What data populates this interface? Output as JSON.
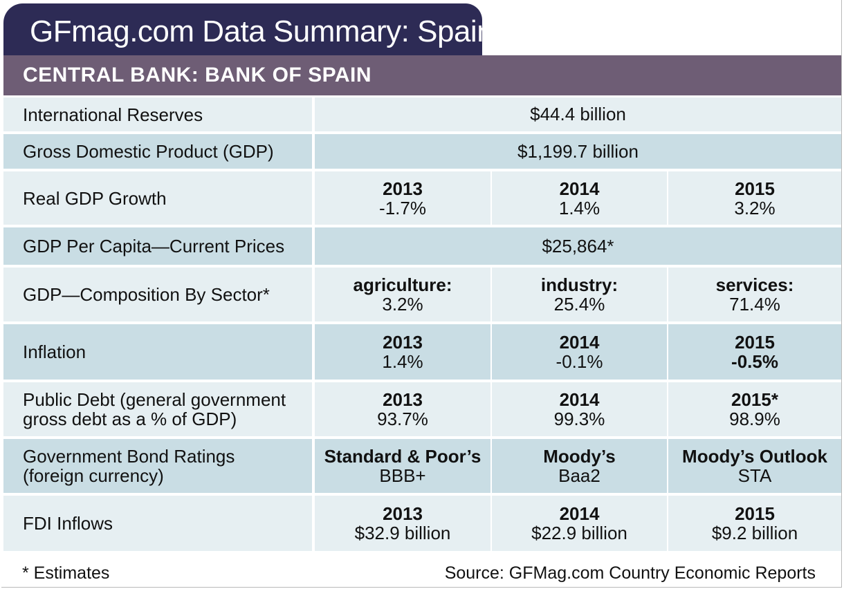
{
  "title": "GFmag.com Data Summary: Spain",
  "header": "CENTRAL BANK: BANK OF SPAIN",
  "rows": {
    "reserves": {
      "label": "International Reserves",
      "value": "$44.4 billion"
    },
    "gdp": {
      "label": "Gross Domestic Product (GDP)",
      "value": "$1,199.7 billion"
    },
    "growth": {
      "label": "Real GDP Growth",
      "cols": [
        {
          "head": "2013",
          "value": "-1.7%"
        },
        {
          "head": "2014",
          "value": "1.4%"
        },
        {
          "head": "2015",
          "value": "3.2%"
        }
      ]
    },
    "per_capita": {
      "label": "GDP Per Capita—Current Prices",
      "value": "$25,864*"
    },
    "composition": {
      "label": "GDP—Composition By Sector*",
      "cols": [
        {
          "head": "agriculture:",
          "value": "3.2%"
        },
        {
          "head": "industry:",
          "value": "25.4%"
        },
        {
          "head": "services:",
          "value": "71.4%"
        }
      ]
    },
    "inflation": {
      "label": "Inflation",
      "cols": [
        {
          "head": "2013",
          "value": "1.4%"
        },
        {
          "head": "2014",
          "value": "-0.1%"
        },
        {
          "head": "2015",
          "value": "-0.5%"
        }
      ]
    },
    "debt": {
      "label_line1": "Public Debt (general government",
      "label_line2": "gross debt as a % of GDP)",
      "cols": [
        {
          "head": "2013",
          "value": "93.7%"
        },
        {
          "head": "2014",
          "value": "99.3%"
        },
        {
          "head": "2015*",
          "value": "98.9%"
        }
      ]
    },
    "ratings": {
      "label_line1": "Government Bond Ratings",
      "label_line2": "(foreign currency)",
      "cols": [
        {
          "head": "Standard & Poor’s",
          "value": "BBB+"
        },
        {
          "head": "Moody’s",
          "value": "Baa2"
        },
        {
          "head": "Moody’s Outlook",
          "value": "STA"
        }
      ]
    },
    "fdi": {
      "label": "FDI Inflows",
      "cols": [
        {
          "head": "2013",
          "value": "$32.9 billion"
        },
        {
          "head": "2014",
          "value": "$22.9 billion"
        },
        {
          "head": "2015",
          "value": "$9.2 billion"
        }
      ]
    }
  },
  "footer": {
    "note": "* Estimates",
    "source": "Source: GFMag.com Country Economic Reports"
  },
  "colors": {
    "title_bg": "#2d2b55",
    "header_bg": "#6e5d75",
    "row_light": "#e6eff2",
    "row_dark": "#c9dde4"
  }
}
